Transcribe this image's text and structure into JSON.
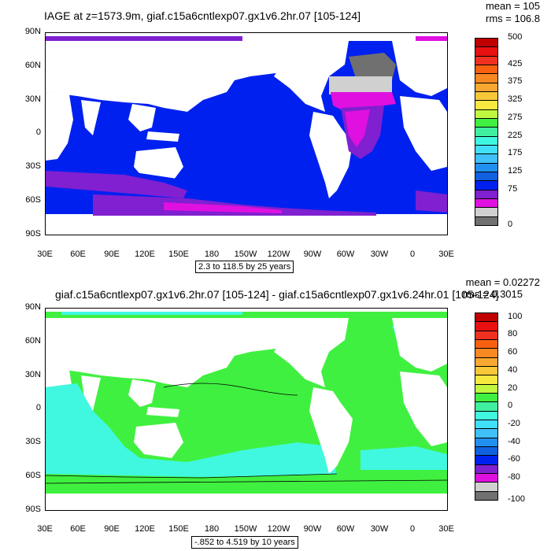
{
  "chart_data": [
    {
      "type": "heatmap",
      "title": "IAGE at z=1573.9m, giaf.c15a6cntlexp07.gx1v6.2hr.07 [105-124]",
      "stats": {
        "mean": "mean = 105",
        "rms": "rms = 106.8"
      },
      "range_label": "2.3 to 118.5 by 25 years",
      "y_ticks": [
        "90N",
        "60N",
        "30N",
        "0",
        "30S",
        "60S",
        "90S"
      ],
      "x_ticks": [
        "30E",
        "60E",
        "90E",
        "120E",
        "150E",
        "180",
        "150W",
        "120W",
        "90W",
        "60W",
        "30W",
        "0",
        "30E"
      ],
      "colorbar": {
        "labels": [
          "500",
          "425",
          "375",
          "325",
          "275",
          "225",
          "175",
          "125",
          "75",
          "0"
        ],
        "colors": [
          "#c00000",
          "#e81010",
          "#f03020",
          "#f86010",
          "#f88820",
          "#f8a830",
          "#f8c838",
          "#f8e840",
          "#c0f840",
          "#40f040",
          "#40f0a0",
          "#40f8e0",
          "#40e0f8",
          "#40c0f8",
          "#2090f0",
          "#1060e0",
          "#0020f0",
          "#8020d0",
          "#e010e0",
          "#d0d0d0",
          "#707070"
        ]
      },
      "regions": {
        "ocean_main": "#0020f0",
        "purple": "#8020d0",
        "magenta": "#e010e0",
        "gray_light": "#d0d0d0",
        "gray_dark": "#707070"
      }
    },
    {
      "type": "heatmap",
      "title": "giaf.c15a6cntlexp07.gx1v6.2hr.07 [105-124] - giaf.c15a6cntlexp07.gx1v6.24hr.01 [105-124]",
      "stats": {
        "mean": "mean = 0.02272",
        "rms": "rms = 0.3015"
      },
      "range_label": "-.852 to 4.519 by 10 years",
      "y_ticks": [
        "90N",
        "60N",
        "30N",
        "0",
        "30S",
        "60S",
        "90S"
      ],
      "x_ticks": [
        "30E",
        "60E",
        "90E",
        "120E",
        "150E",
        "180",
        "150W",
        "120W",
        "90W",
        "60W",
        "30W",
        "0",
        "30E"
      ],
      "colorbar": {
        "labels": [
          "100",
          "80",
          "60",
          "40",
          "20",
          "0",
          "-20",
          "-40",
          "-60",
          "-80",
          "-100"
        ],
        "colors": [
          "#c00000",
          "#e81010",
          "#f03020",
          "#f86010",
          "#f88820",
          "#f8a830",
          "#f8c838",
          "#f8e840",
          "#c0f840",
          "#40f040",
          "#40f0a0",
          "#40f8e0",
          "#40e0f8",
          "#40c0f8",
          "#2090f0",
          "#1060e0",
          "#0020f0",
          "#8020d0",
          "#e010e0",
          "#d0d0d0",
          "#707070"
        ]
      },
      "regions": {
        "green": "#40f040",
        "cyan": "#40f8e0"
      }
    }
  ]
}
